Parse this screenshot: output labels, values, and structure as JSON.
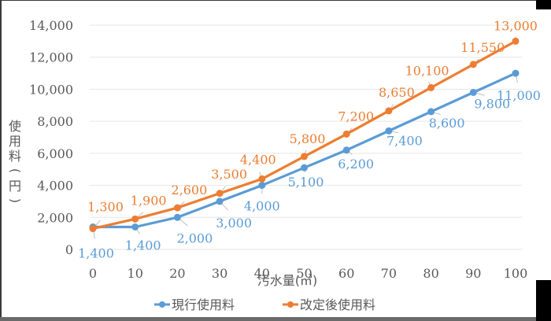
{
  "chart_data": {
    "type": "line",
    "title": "",
    "xlabel": "汚水量(㎥)",
    "ylabel": "使用料(円)",
    "x": [
      0,
      10,
      20,
      30,
      40,
      50,
      60,
      70,
      80,
      90,
      100
    ],
    "x_tick_labels": [
      "0",
      "10",
      "20",
      "30",
      "40",
      "50",
      "60",
      "70",
      "80",
      "90",
      "100"
    ],
    "y_tick_labels": [
      "0",
      "2,000",
      "4,000",
      "6,000",
      "8,000",
      "10,000",
      "12,000",
      "14,000"
    ],
    "ylim": [
      0,
      14000
    ],
    "grid": true,
    "legend_position": "bottom",
    "series": [
      {
        "name": "現行使用料",
        "color": "#5B9BD5",
        "values": [
          1400,
          1400,
          2000,
          3000,
          4000,
          5100,
          6200,
          7400,
          8600,
          9800,
          11000
        ],
        "labels": [
          "1,400",
          "1,400",
          "2,000",
          "3,000",
          "4,000",
          "5,100",
          "6,200",
          "7,400",
          "8,600",
          "9,800",
          "11,000"
        ]
      },
      {
        "name": "改定後使用料",
        "color": "#ED7D31",
        "values": [
          1300,
          1900,
          2600,
          3500,
          4400,
          5800,
          7200,
          8650,
          10100,
          11550,
          13000
        ],
        "labels": [
          "1,300",
          "1,900",
          "2,600",
          "3,500",
          "4,400",
          "5,800",
          "7,200",
          "8,650",
          "10,100",
          "11,550",
          "13,000"
        ]
      }
    ]
  },
  "ylabel_chars": [
    "使",
    "用",
    "料",
    "(",
    "円",
    ")"
  ]
}
